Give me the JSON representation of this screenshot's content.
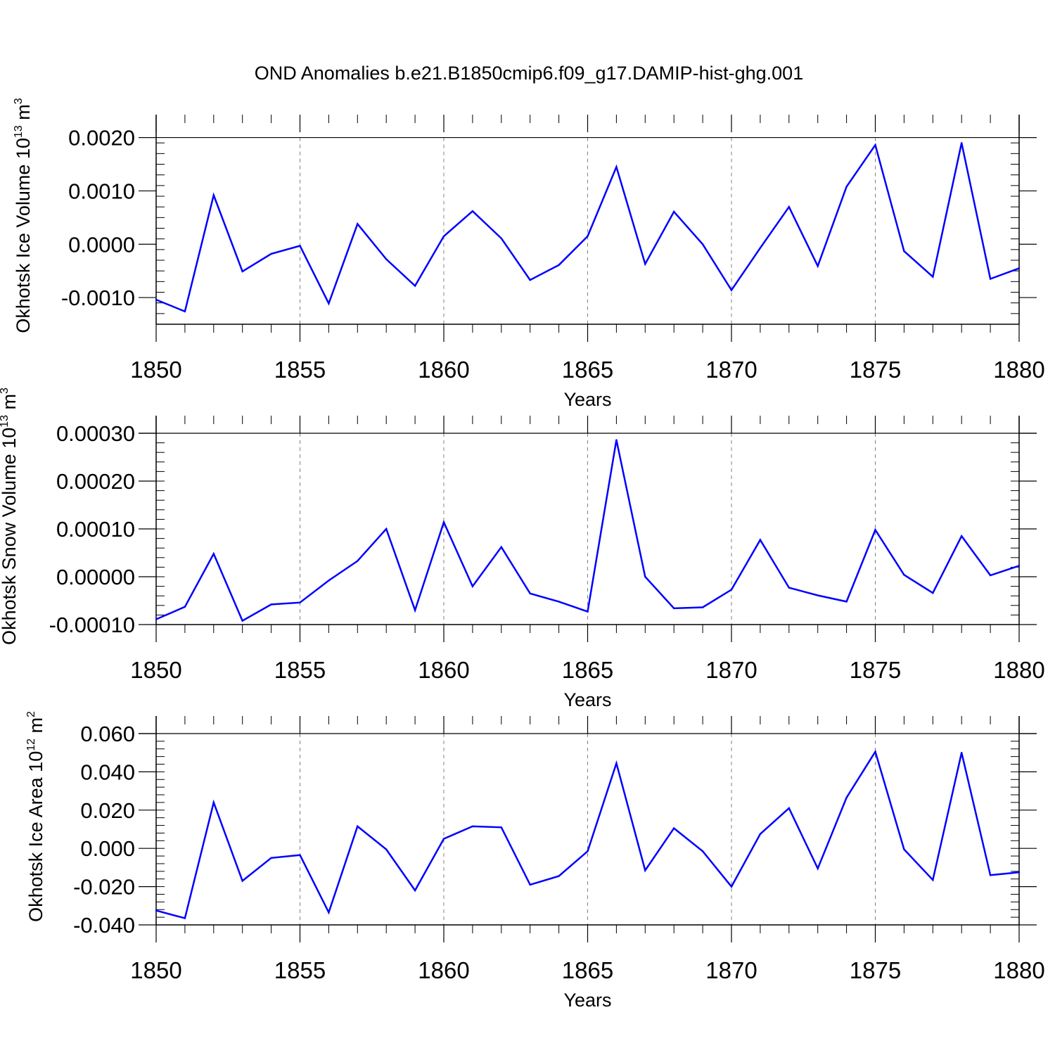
{
  "title": "OND Anomalies b.e21.B1850cmip6.f09_g17.DAMIP-hist-ghg.001",
  "colors": {
    "line": "#0000ff",
    "axis": "#000000",
    "grid": "#808080"
  },
  "chart_data": [
    {
      "type": "line",
      "ylabel": "Okhotsk Ice Volume 10",
      "ylabel_exp": "13",
      "ylabel_unit": "m",
      "ylabel_unit_exp": "3",
      "xlabel": "Years",
      "xlim": [
        1850,
        1880
      ],
      "ylim": [
        -0.0015,
        0.0021
      ],
      "yticks": [
        -0.001,
        0.0,
        0.001,
        0.002
      ],
      "ytick_labels": [
        "-0.0010",
        "0.0000",
        "0.0010",
        "0.0020"
      ],
      "xticks": [
        1850,
        1855,
        1860,
        1865,
        1870,
        1875,
        1880
      ],
      "xtick_labels": [
        "1850",
        "1855",
        "1860",
        "1865",
        "1870",
        "1875",
        "1880"
      ],
      "x": [
        1850,
        1851,
        1852,
        1853,
        1854,
        1855,
        1856,
        1857,
        1858,
        1859,
        1860,
        1861,
        1862,
        1863,
        1864,
        1865,
        1866,
        1867,
        1868,
        1869,
        1870,
        1871,
        1872,
        1873,
        1874,
        1875,
        1876,
        1877,
        1878,
        1879,
        1880
      ],
      "values": [
        -0.00104,
        -0.00126,
        0.00092,
        -0.00051,
        -0.00018,
        -3e-05,
        -0.00111,
        0.00038,
        -0.00028,
        -0.00078,
        0.00015,
        0.00062,
        0.00011,
        -0.00067,
        -0.00039,
        0.00015,
        0.00145,
        -0.00037,
        0.00061,
        0.0,
        -0.00086,
        -7e-05,
        0.0007,
        -0.00041,
        0.00108,
        0.00186,
        -0.00013,
        -0.00061,
        0.0019,
        -0.00065,
        -0.00045
      ]
    },
    {
      "type": "line",
      "ylabel": "Okhotsk Snow Volume 10",
      "ylabel_exp": "13",
      "ylabel_unit": "m",
      "ylabel_unit_exp": "3",
      "xlabel": "Years",
      "xlim": [
        1850,
        1880
      ],
      "ylim": [
        -0.0001,
        0.0003
      ],
      "yticks": [
        -0.0001,
        0.0,
        0.0001,
        0.0002,
        0.0003
      ],
      "ytick_labels": [
        "-0.00010",
        "0.00000",
        "0.00010",
        "0.00020",
        "0.00030"
      ],
      "xticks": [
        1850,
        1855,
        1860,
        1865,
        1870,
        1875,
        1880
      ],
      "xtick_labels": [
        "1850",
        "1855",
        "1860",
        "1865",
        "1870",
        "1875",
        "1880"
      ],
      "x": [
        1850,
        1851,
        1852,
        1853,
        1854,
        1855,
        1856,
        1857,
        1858,
        1859,
        1860,
        1861,
        1862,
        1863,
        1864,
        1865,
        1866,
        1867,
        1868,
        1869,
        1870,
        1871,
        1872,
        1873,
        1874,
        1875,
        1876,
        1877,
        1878,
        1879,
        1880
      ],
      "values": [
        -8.9e-05,
        -6.3e-05,
        4.8e-05,
        -9.2e-05,
        -5.8e-05,
        -5.4e-05,
        -8e-06,
        3.3e-05,
        0.0001,
        -7e-05,
        0.000114,
        -2e-05,
        6.2e-05,
        -3.5e-05,
        -5.2e-05,
        -7.3e-05,
        0.000286,
        0.0,
        -6.6e-05,
        -6.4e-05,
        -2.7e-05,
        7.7e-05,
        -2.3e-05,
        -3.9e-05,
        -5.2e-05,
        9.8e-05,
        4e-06,
        -3.4e-05,
        8.5e-05,
        3e-06,
        2.3e-05
      ]
    },
    {
      "type": "line",
      "ylabel": "Okhotsk Ice Area 10",
      "ylabel_exp": "12",
      "ylabel_unit": "m",
      "ylabel_unit_exp": "2",
      "xlabel": "Years",
      "xlim": [
        1850,
        1880
      ],
      "ylim": [
        -0.04,
        0.06
      ],
      "yticks": [
        -0.04,
        -0.02,
        0.0,
        0.02,
        0.04,
        0.06
      ],
      "ytick_labels": [
        "-0.040",
        "-0.020",
        "0.000",
        "0.020",
        "0.040",
        "0.060"
      ],
      "xticks": [
        1850,
        1855,
        1860,
        1865,
        1870,
        1875,
        1880
      ],
      "xtick_labels": [
        "1850",
        "1855",
        "1860",
        "1865",
        "1870",
        "1875",
        "1880"
      ],
      "x": [
        1850,
        1851,
        1852,
        1853,
        1854,
        1855,
        1856,
        1857,
        1858,
        1859,
        1860,
        1861,
        1862,
        1863,
        1864,
        1865,
        1866,
        1867,
        1868,
        1869,
        1870,
        1871,
        1872,
        1873,
        1874,
        1875,
        1876,
        1877,
        1878,
        1879,
        1880
      ],
      "values": [
        -0.0325,
        -0.0365,
        0.024,
        -0.017,
        -0.005,
        -0.0035,
        -0.0335,
        0.0115,
        -0.0005,
        -0.022,
        0.005,
        0.0115,
        0.011,
        -0.019,
        -0.0145,
        -0.0015,
        0.0445,
        -0.0115,
        0.0105,
        -0.0015,
        -0.02,
        0.0075,
        0.021,
        -0.0105,
        0.0265,
        0.0505,
        -0.0005,
        -0.0165,
        0.05,
        -0.014,
        -0.0125
      ]
    }
  ]
}
